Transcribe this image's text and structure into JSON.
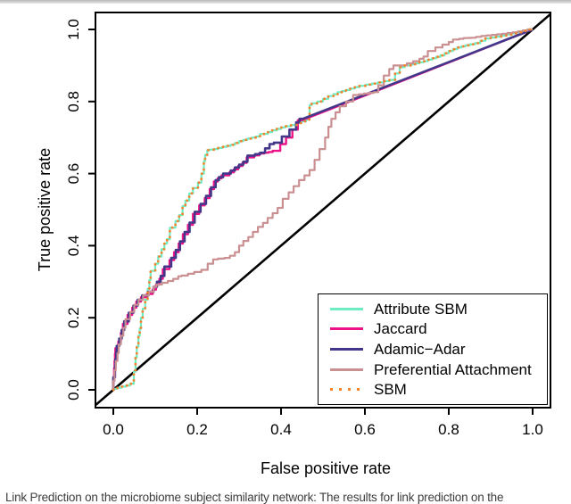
{
  "caption": {
    "text": "Link Prediction on the microbiome subject similarity network: The results for link prediction on the"
  },
  "chart_data": {
    "type": "line",
    "subtype": "roc-curves",
    "title": "",
    "xlabel": "False positive rate",
    "ylabel": "True positive rate",
    "xlim": [
      0,
      1
    ],
    "ylim": [
      0,
      1
    ],
    "grid": false,
    "legend_position": "bottom-right",
    "x_ticks": {
      "values": [
        0,
        0.2,
        0.4,
        0.6,
        0.8,
        1.0
      ],
      "labels": [
        "0.0",
        "0.2",
        "0.4",
        "0.6",
        "0.8",
        "1.0"
      ]
    },
    "y_ticks": {
      "values": [
        0,
        0.2,
        0.4,
        0.6,
        0.8,
        1.0
      ],
      "labels": [
        "0.0",
        "0.2",
        "0.4",
        "0.6",
        "0.8",
        "1.0"
      ]
    },
    "reference_line": {
      "name": "chance line",
      "from": [
        0,
        0
      ],
      "to": [
        1,
        1
      ],
      "color": "#000000"
    },
    "series": [
      {
        "name": "Attribute SBM",
        "color": "#6FEDC2",
        "style": "solid",
        "straight_tail": false,
        "points": [
          [
            0,
            0
          ],
          [
            0.02,
            0.006
          ],
          [
            0.04,
            0.012
          ],
          [
            0.049,
            0.017
          ],
          [
            0.053,
            0.05
          ],
          [
            0.056,
            0.09
          ],
          [
            0.06,
            0.12
          ],
          [
            0.063,
            0.15
          ],
          [
            0.066,
            0.17
          ],
          [
            0.07,
            0.2
          ],
          [
            0.076,
            0.225
          ],
          [
            0.082,
            0.25
          ],
          [
            0.086,
            0.28
          ],
          [
            0.089,
            0.305
          ],
          [
            0.1,
            0.33
          ],
          [
            0.107,
            0.35
          ],
          [
            0.115,
            0.37
          ],
          [
            0.122,
            0.39
          ],
          [
            0.128,
            0.406
          ],
          [
            0.135,
            0.418
          ],
          [
            0.148,
            0.45
          ],
          [
            0.157,
            0.468
          ],
          [
            0.165,
            0.485
          ],
          [
            0.172,
            0.51
          ],
          [
            0.181,
            0.525
          ],
          [
            0.19,
            0.545
          ],
          [
            0.202,
            0.56
          ],
          [
            0.21,
            0.575
          ],
          [
            0.216,
            0.6
          ],
          [
            0.219,
            0.635
          ],
          [
            0.224,
            0.652
          ],
          [
            0.23,
            0.665
          ],
          [
            0.25,
            0.668
          ],
          [
            0.27,
            0.674
          ],
          [
            0.29,
            0.68
          ],
          [
            0.31,
            0.69
          ],
          [
            0.33,
            0.697
          ],
          [
            0.35,
            0.703
          ],
          [
            0.368,
            0.71
          ],
          [
            0.39,
            0.72
          ],
          [
            0.41,
            0.728
          ],
          [
            0.438,
            0.735
          ],
          [
            0.46,
            0.745
          ],
          [
            0.468,
            0.75
          ],
          [
            0.473,
            0.79
          ],
          [
            0.5,
            0.8
          ],
          [
            0.525,
            0.815
          ],
          [
            0.545,
            0.826
          ],
          [
            0.565,
            0.832
          ],
          [
            0.587,
            0.84
          ],
          [
            0.617,
            0.847
          ],
          [
            0.645,
            0.853
          ],
          [
            0.672,
            0.86
          ],
          [
            0.683,
            0.878
          ],
          [
            0.695,
            0.895
          ],
          [
            0.71,
            0.9
          ],
          [
            0.73,
            0.906
          ],
          [
            0.75,
            0.912
          ],
          [
            0.77,
            0.92
          ],
          [
            0.79,
            0.928
          ],
          [
            0.81,
            0.94
          ],
          [
            0.83,
            0.95
          ],
          [
            0.85,
            0.956
          ],
          [
            0.875,
            0.962
          ],
          [
            0.9,
            0.975
          ],
          [
            0.925,
            0.98
          ],
          [
            0.95,
            0.986
          ],
          [
            0.975,
            0.992
          ],
          [
            1,
            1
          ]
        ]
      },
      {
        "name": "Jaccard",
        "color": "#EE1289",
        "style": "solid",
        "straight_tail": true,
        "points": [
          [
            0,
            0
          ],
          [
            0.002,
            0.03
          ],
          [
            0.003,
            0.06
          ],
          [
            0.004,
            0.08
          ],
          [
            0.005,
            0.1
          ],
          [
            0.012,
            0.115
          ],
          [
            0.018,
            0.134
          ],
          [
            0.023,
            0.158
          ],
          [
            0.034,
            0.183
          ],
          [
            0.045,
            0.208
          ],
          [
            0.055,
            0.228
          ],
          [
            0.066,
            0.245
          ],
          [
            0.08,
            0.257
          ],
          [
            0.094,
            0.266
          ],
          [
            0.102,
            0.278
          ],
          [
            0.11,
            0.292
          ],
          [
            0.118,
            0.308
          ],
          [
            0.134,
            0.335
          ],
          [
            0.145,
            0.36
          ],
          [
            0.156,
            0.382
          ],
          [
            0.166,
            0.406
          ],
          [
            0.178,
            0.432
          ],
          [
            0.19,
            0.458
          ],
          [
            0.205,
            0.488
          ],
          [
            0.218,
            0.512
          ],
          [
            0.23,
            0.532
          ],
          [
            0.24,
            0.557
          ],
          [
            0.249,
            0.578
          ],
          [
            0.258,
            0.587
          ],
          [
            0.277,
            0.595
          ],
          [
            0.298,
            0.612
          ],
          [
            0.318,
            0.63
          ],
          [
            0.336,
            0.645
          ],
          [
            0.36,
            0.656
          ],
          [
            0.38,
            0.66
          ],
          [
            0.398,
            0.663
          ],
          [
            0.412,
            0.682
          ],
          [
            0.427,
            0.7
          ],
          [
            0.44,
            0.722
          ],
          [
            0.45,
            0.748
          ],
          [
            1,
            1
          ]
        ]
      },
      {
        "name": "Adamic−Adar",
        "color": "#423789",
        "style": "solid",
        "straight_tail": true,
        "points": [
          [
            0,
            0
          ],
          [
            0.004,
            0.035
          ],
          [
            0.005,
            0.065
          ],
          [
            0.007,
            0.085
          ],
          [
            0.008,
            0.105
          ],
          [
            0.014,
            0.122
          ],
          [
            0.02,
            0.142
          ],
          [
            0.026,
            0.166
          ],
          [
            0.037,
            0.19
          ],
          [
            0.048,
            0.214
          ],
          [
            0.058,
            0.234
          ],
          [
            0.069,
            0.25
          ],
          [
            0.083,
            0.262
          ],
          [
            0.096,
            0.272
          ],
          [
            0.104,
            0.286
          ],
          [
            0.113,
            0.3
          ],
          [
            0.122,
            0.316
          ],
          [
            0.138,
            0.342
          ],
          [
            0.149,
            0.366
          ],
          [
            0.159,
            0.388
          ],
          [
            0.17,
            0.412
          ],
          [
            0.182,
            0.438
          ],
          [
            0.194,
            0.464
          ],
          [
            0.208,
            0.494
          ],
          [
            0.221,
            0.516
          ],
          [
            0.233,
            0.538
          ],
          [
            0.244,
            0.562
          ],
          [
            0.252,
            0.582
          ],
          [
            0.262,
            0.59
          ],
          [
            0.28,
            0.6
          ],
          [
            0.3,
            0.617
          ],
          [
            0.32,
            0.633
          ],
          [
            0.338,
            0.65
          ],
          [
            0.362,
            0.658
          ],
          [
            0.383,
            0.682
          ],
          [
            0.402,
            0.686
          ],
          [
            0.42,
            0.703
          ],
          [
            0.436,
            0.722
          ],
          [
            0.444,
            0.742
          ],
          [
            0.452,
            0.752
          ],
          [
            1,
            1
          ]
        ]
      },
      {
        "name": "Preferential Attachment",
        "color": "#C98F91",
        "style": "solid",
        "straight_tail": false,
        "points": [
          [
            0,
            0
          ],
          [
            0.003,
            0.025
          ],
          [
            0.006,
            0.055
          ],
          [
            0.01,
            0.08
          ],
          [
            0.013,
            0.102
          ],
          [
            0.018,
            0.126
          ],
          [
            0.024,
            0.15
          ],
          [
            0.029,
            0.172
          ],
          [
            0.04,
            0.196
          ],
          [
            0.05,
            0.216
          ],
          [
            0.06,
            0.236
          ],
          [
            0.071,
            0.25
          ],
          [
            0.085,
            0.262
          ],
          [
            0.096,
            0.272
          ],
          [
            0.103,
            0.286
          ],
          [
            0.116,
            0.292
          ],
          [
            0.13,
            0.297
          ],
          [
            0.143,
            0.302
          ],
          [
            0.155,
            0.308
          ],
          [
            0.163,
            0.315
          ],
          [
            0.178,
            0.317
          ],
          [
            0.193,
            0.322
          ],
          [
            0.21,
            0.327
          ],
          [
            0.225,
            0.333
          ],
          [
            0.238,
            0.35
          ],
          [
            0.25,
            0.362
          ],
          [
            0.265,
            0.364
          ],
          [
            0.278,
            0.366
          ],
          [
            0.29,
            0.372
          ],
          [
            0.3,
            0.382
          ],
          [
            0.31,
            0.4
          ],
          [
            0.322,
            0.413
          ],
          [
            0.333,
            0.424
          ],
          [
            0.345,
            0.438
          ],
          [
            0.357,
            0.452
          ],
          [
            0.368,
            0.463
          ],
          [
            0.38,
            0.477
          ],
          [
            0.392,
            0.49
          ],
          [
            0.404,
            0.505
          ],
          [
            0.418,
            0.53
          ],
          [
            0.43,
            0.548
          ],
          [
            0.443,
            0.565
          ],
          [
            0.456,
            0.582
          ],
          [
            0.468,
            0.595
          ],
          [
            0.48,
            0.61
          ],
          [
            0.492,
            0.638
          ],
          [
            0.505,
            0.668
          ],
          [
            0.513,
            0.7
          ],
          [
            0.52,
            0.73
          ],
          [
            0.53,
            0.752
          ],
          [
            0.54,
            0.77
          ],
          [
            0.555,
            0.787
          ],
          [
            0.572,
            0.8
          ],
          [
            0.585,
            0.818
          ],
          [
            0.61,
            0.822
          ],
          [
            0.632,
            0.826
          ],
          [
            0.645,
            0.845
          ],
          [
            0.658,
            0.872
          ],
          [
            0.668,
            0.89
          ],
          [
            0.68,
            0.9
          ],
          [
            0.7,
            0.9
          ],
          [
            0.715,
            0.906
          ],
          [
            0.73,
            0.912
          ],
          [
            0.75,
            0.925
          ],
          [
            0.768,
            0.94
          ],
          [
            0.785,
            0.95
          ],
          [
            0.8,
            0.958
          ],
          [
            0.81,
            0.965
          ],
          [
            0.825,
            0.972
          ],
          [
            0.845,
            0.976
          ],
          [
            0.865,
            0.977
          ],
          [
            0.89,
            0.982
          ],
          [
            0.915,
            0.985
          ],
          [
            0.94,
            0.988
          ],
          [
            0.965,
            0.992
          ],
          [
            1,
            1
          ]
        ]
      },
      {
        "name": "SBM",
        "color": "#F28430",
        "style": "dotted",
        "straight_tail": false,
        "points": [
          [
            0,
            0
          ],
          [
            0.02,
            0.006
          ],
          [
            0.04,
            0.012
          ],
          [
            0.049,
            0.017
          ],
          [
            0.053,
            0.05
          ],
          [
            0.056,
            0.09
          ],
          [
            0.06,
            0.12
          ],
          [
            0.063,
            0.15
          ],
          [
            0.066,
            0.17
          ],
          [
            0.07,
            0.2
          ],
          [
            0.076,
            0.225
          ],
          [
            0.082,
            0.25
          ],
          [
            0.086,
            0.28
          ],
          [
            0.089,
            0.305
          ],
          [
            0.1,
            0.33
          ],
          [
            0.107,
            0.35
          ],
          [
            0.115,
            0.37
          ],
          [
            0.122,
            0.39
          ],
          [
            0.128,
            0.406
          ],
          [
            0.135,
            0.418
          ],
          [
            0.148,
            0.45
          ],
          [
            0.157,
            0.468
          ],
          [
            0.165,
            0.485
          ],
          [
            0.172,
            0.51
          ],
          [
            0.181,
            0.525
          ],
          [
            0.19,
            0.545
          ],
          [
            0.202,
            0.56
          ],
          [
            0.21,
            0.575
          ],
          [
            0.216,
            0.6
          ],
          [
            0.219,
            0.635
          ],
          [
            0.224,
            0.652
          ],
          [
            0.23,
            0.665
          ],
          [
            0.25,
            0.668
          ],
          [
            0.27,
            0.674
          ],
          [
            0.29,
            0.68
          ],
          [
            0.31,
            0.69
          ],
          [
            0.33,
            0.697
          ],
          [
            0.35,
            0.703
          ],
          [
            0.368,
            0.71
          ],
          [
            0.39,
            0.72
          ],
          [
            0.41,
            0.728
          ],
          [
            0.438,
            0.735
          ],
          [
            0.46,
            0.745
          ],
          [
            0.468,
            0.75
          ],
          [
            0.473,
            0.79
          ],
          [
            0.5,
            0.8
          ],
          [
            0.525,
            0.815
          ],
          [
            0.545,
            0.826
          ],
          [
            0.565,
            0.832
          ],
          [
            0.587,
            0.84
          ],
          [
            0.617,
            0.847
          ],
          [
            0.645,
            0.853
          ],
          [
            0.672,
            0.86
          ],
          [
            0.683,
            0.878
          ],
          [
            0.695,
            0.895
          ],
          [
            0.71,
            0.9
          ],
          [
            0.73,
            0.906
          ],
          [
            0.75,
            0.912
          ],
          [
            0.77,
            0.92
          ],
          [
            0.79,
            0.928
          ],
          [
            0.81,
            0.94
          ],
          [
            0.83,
            0.95
          ],
          [
            0.85,
            0.956
          ],
          [
            0.875,
            0.962
          ],
          [
            0.9,
            0.975
          ],
          [
            0.925,
            0.98
          ],
          [
            0.95,
            0.986
          ],
          [
            0.975,
            0.992
          ],
          [
            1,
            1
          ]
        ]
      }
    ]
  }
}
